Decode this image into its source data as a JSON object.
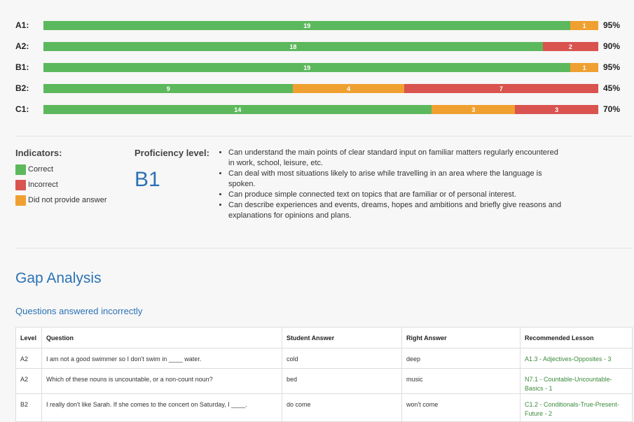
{
  "levels": [
    {
      "label": "A1:",
      "correct": 19,
      "no_answer": 1,
      "incorrect": 0,
      "percent": "95%"
    },
    {
      "label": "A2:",
      "correct": 18,
      "no_answer": 0,
      "incorrect": 2,
      "percent": "90%"
    },
    {
      "label": "B1:",
      "correct": 19,
      "no_answer": 1,
      "incorrect": 0,
      "percent": "95%"
    },
    {
      "label": "B2:",
      "correct": 9,
      "no_answer": 4,
      "incorrect": 7,
      "percent": "45%"
    },
    {
      "label": "C1:",
      "correct": 14,
      "no_answer": 3,
      "incorrect": 3,
      "percent": "70%"
    }
  ],
  "colors": {
    "correct": "#5cb85c",
    "incorrect": "#d9534f",
    "no_answer": "#f0a030",
    "accent": "#2a72b5"
  },
  "indicators": {
    "title": "Indicators:",
    "items": [
      {
        "label": "Correct",
        "color": "#5cb85c"
      },
      {
        "label": "Incorrect",
        "color": "#d9534f"
      },
      {
        "label": "Did not provide answer",
        "color": "#f0a030"
      }
    ]
  },
  "proficiency": {
    "title": "Proficiency level:",
    "level": "B1",
    "descriptors": [
      "Can understand the main points of clear standard input on familiar matters regularly encountered in work, school, leisure, etc.",
      "Can deal with most situations likely to arise while travelling in an area where the language is spoken.",
      "Can produce simple connected text on topics that are familiar or of personal interest.",
      "Can describe experiences and events, dreams, hopes and ambitions and briefly give reasons and explanations for opinions and plans."
    ]
  },
  "gap": {
    "title": "Gap Analysis",
    "subtitle": "Questions answered incorrectly",
    "columns": [
      "Level",
      "Question",
      "Student Answer",
      "Right Answer",
      "Recommended Lesson"
    ],
    "rows": [
      {
        "level": "A2",
        "question": "I am not a good swimmer so I don't swim in ____ water.",
        "student": "cold",
        "right": "deep",
        "lesson": "A1.3 - Adjectives-Opposites - 3"
      },
      {
        "level": "A2",
        "question": "Which of these nouns is uncountable, or a non-count noun?",
        "student": "bed",
        "right": "music",
        "lesson": "N7.1 - Countable-Uncountable-Basics - 1"
      },
      {
        "level": "B2",
        "question": "I really don't like Sarah. If she comes to the concert on Saturday, I ____.",
        "student": "do come",
        "right": "won't come",
        "lesson": "C1.2 - Conditionals-True-Present-Future - 2"
      }
    ]
  }
}
